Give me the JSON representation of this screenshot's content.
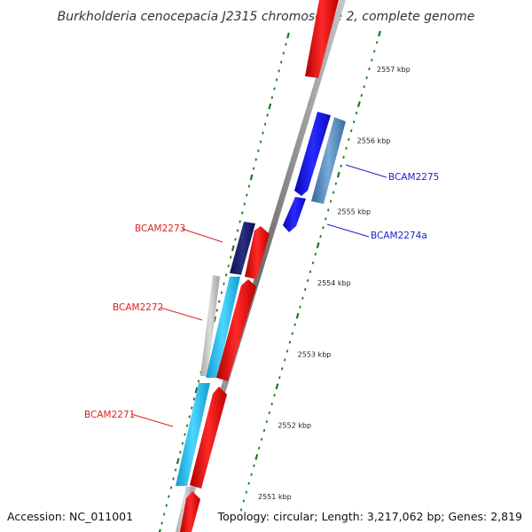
{
  "title": "Burkholderia cenocepacia J2315 chromosome 2, complete genome",
  "footer": {
    "accession": "Accession: NC_011001",
    "summary": "Topology: circular; Length: 3,217,062 bp; Genes: 2,819"
  },
  "colors": {
    "tick": "#1a7a1a",
    "forward_cds": "#ee1111",
    "reverse_cds": "#1a1aee",
    "forward_label": "#dd2222",
    "reverse_label": "#2222cc",
    "backbone": "#8a8a8a",
    "inner_track": "#1ab8ec",
    "inner_track_dark": "#141a7a",
    "outer_track": "#4a7fb8"
  },
  "ticks": [
    {
      "kbp": 2551,
      "label": "2551 kbp"
    },
    {
      "kbp": 2552,
      "label": "2552 kbp"
    },
    {
      "kbp": 2553,
      "label": "2553 kbp"
    },
    {
      "kbp": 2554,
      "label": "2554 kbp"
    },
    {
      "kbp": 2555,
      "label": "2555 kbp"
    },
    {
      "kbp": 2556,
      "label": "2556 kbp"
    },
    {
      "kbp": 2557,
      "label": "2557 kbp"
    }
  ],
  "genes": [
    {
      "name": "BCAM2271",
      "side": "left"
    },
    {
      "name": "BCAM2272",
      "side": "left"
    },
    {
      "name": "BCAM2273",
      "side": "left"
    },
    {
      "name": "BCAM2274a",
      "side": "right"
    },
    {
      "name": "BCAM2275",
      "side": "right"
    }
  ]
}
